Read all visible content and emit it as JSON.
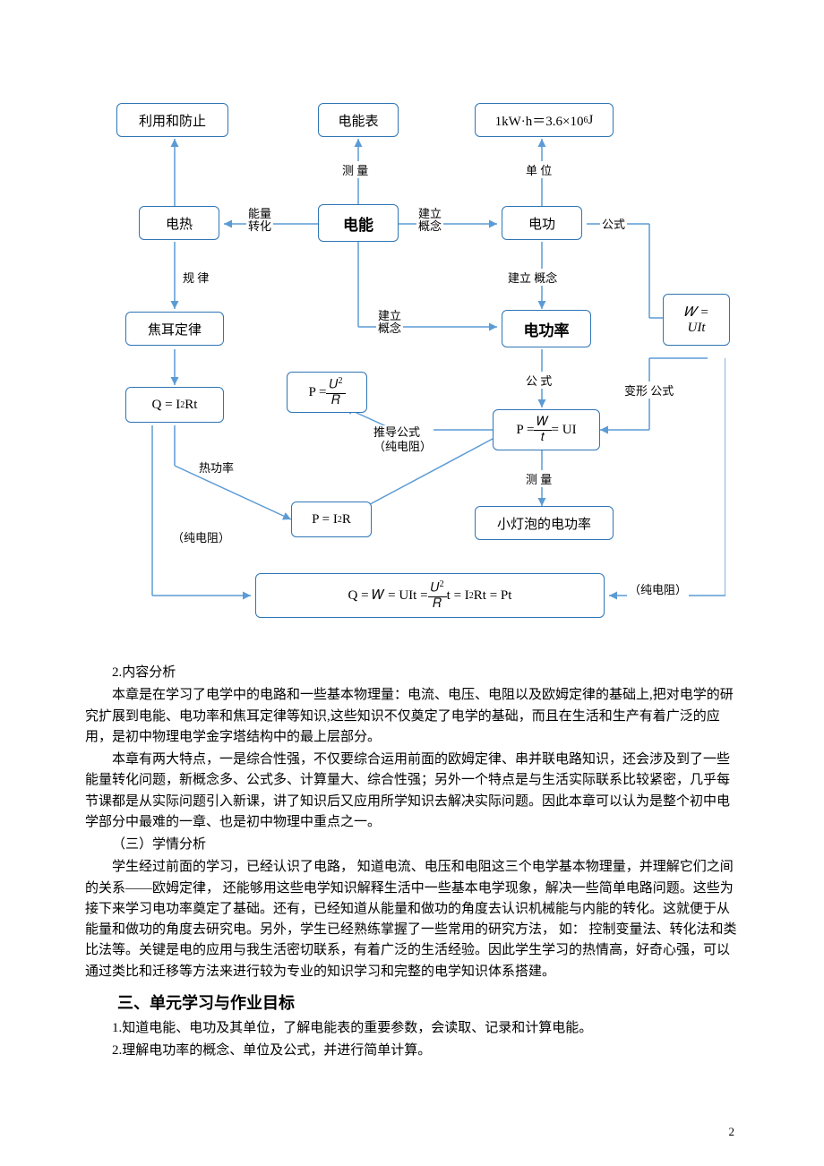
{
  "diagram": {
    "nodes": {
      "n1": "利用和防止",
      "n2": "电能表",
      "n3_html": "1kW·h＝3.6×10<sup>6</sup>J",
      "n4": "电热",
      "n5": "电能",
      "n6": "电功",
      "n7": "焦耳定律",
      "n8": "电功率",
      "n9_html": "𝑊 =<br>UIt",
      "n10_html": "Q = I<sup>2</sup> Rt",
      "n11_html": "P = <span class='frac'><span class='num'>𝑈<sup>2</sup></span><span class='den'>𝑅</span></span>",
      "n12_html": "P = <span class='frac'><span class='num'>𝑊</span><span class='den'>𝑡</span></span> = UI",
      "n13_html": "P = I<sup>2</sup> R",
      "n14": "小灯泡的电功率",
      "n15_html": "Q = 𝑊 = UIt = <span class='frac'><span class='num'>𝑈<sup>2</sup></span><span class='den'>𝑅</span></span> t = I<sup>2</sup> Rt = Pt"
    },
    "edge_labels": {
      "e1": "测 量",
      "e2": "单 位",
      "e3": "能量转化",
      "e4": "建立概念",
      "e5": "公式",
      "e6": "规 律",
      "e7": "建立 概念",
      "e8": "建立概念",
      "e9": "公 式",
      "e10": "变形 公式",
      "e11": "推导公式（纯电阻）",
      "e12": "测 量",
      "e13": "热功率",
      "e14": "（纯电阻）",
      "e15": "（纯电阻）"
    },
    "colors": {
      "node_border": "#2e75b6",
      "arrow": "#5b9bd5",
      "text": "#000000",
      "bg": "#ffffff"
    }
  },
  "prose": {
    "p1_label": "2.内容分析",
    "p2": "本章是在学习了电学中的电路和一些基本物理量：电流、电压、电阻以及欧姆定律的基础上,把对电学的研究扩展到电能、电功率和焦耳定律等知识,这些知识不仅奠定了电学的基础，而且在生活和生产有着广泛的应用，是初中物理电学金字塔结构中的最上层部分。",
    "p3": "本章有两大特点，一是综合性强，不仅要综合运用前面的欧姆定律、串并联电路知识，还会涉及到了一些能量转化问题，新概念多、公式多、计算量大、综合性强；另外一个特点是与生活实际联系比较紧密，几乎每节课都是从实际问题引入新课，讲了知识后又应用所学知识去解决实际问题。因此本章可以认为是整个初中电学部分中最难的一章、也是初中物理中重点之一。",
    "p4_label": "（三）学情分析",
    "p5": "学生经过前面的学习，已经认识了电路， 知道电流、电压和电阻这三个电学基本物理量，并理解它们之间的关系——欧姆定律， 还能够用这些电学知识解释生活中一些基本电学现象，解决一些简单电路问题。这些为接下来学习电功率奠定了基础。还有，已经知道从能量和做功的角度去认识机械能与内能的转化。这就便于从能量和做功的角度去研究电。另外，学生已经熟练掌握了一些常用的研究方法， 如： 控制变量法、转化法和类比法等。关键是电的应用与我生活密切联系，有着广泛的生活经验。因此学生学习的热情高，好奇心强，可以通过类比和迁移等方法来进行较为专业的知识学习和完整的电学知识体系搭建。",
    "section3": "三、单元学习与作业目标",
    "li1": "1.知道电能、电功及其单位，了解电能表的重要参数，会读取、记录和计算电能。",
    "li2": "2.理解电功率的概念、单位及公式，并进行简单计算。"
  },
  "pagenum": "2"
}
